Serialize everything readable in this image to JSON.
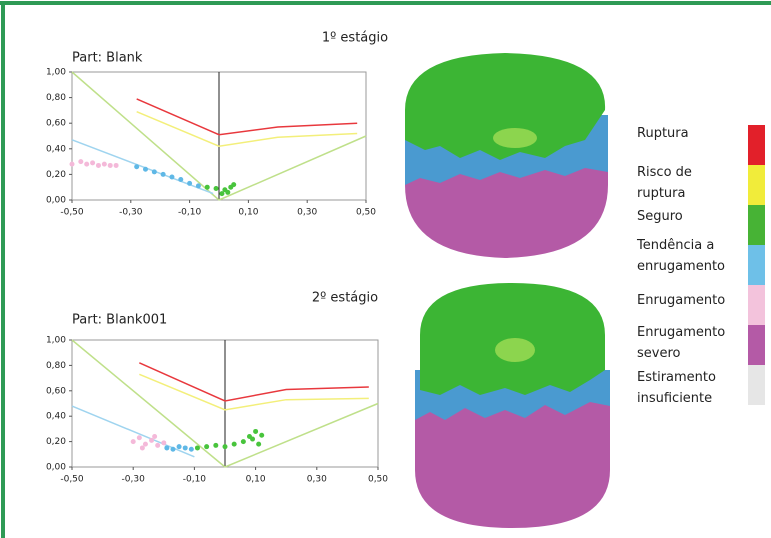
{
  "chart_data": [
    {
      "type": "line",
      "title": "1º estágio",
      "subtitle": "Part: Blank",
      "xlim": [
        -0.5,
        0.5
      ],
      "ylim": [
        0,
        1
      ],
      "xticks": [
        {
          "value": -0.5,
          "label": "-0,50"
        },
        {
          "value": -0.3,
          "label": "-0,30"
        },
        {
          "value": -0.1,
          "label": "-0,10"
        },
        {
          "value": 0.1,
          "label": "0,10"
        },
        {
          "value": 0.3,
          "label": "0,30"
        },
        {
          "value": 0.5,
          "label": "0,50"
        }
      ],
      "yticks": [
        {
          "value": 0,
          "label": "0,00"
        },
        {
          "value": 0.2,
          "label": "0,20"
        },
        {
          "value": 0.4,
          "label": "0,40"
        },
        {
          "value": 0.6,
          "label": "0,60"
        },
        {
          "value": 0.8,
          "label": "0,80"
        },
        {
          "value": 1,
          "label": "1,00"
        }
      ],
      "series": [
        {
          "color": "#e8383d",
          "markers": false,
          "x": [
            -0.28,
            0,
            0.2,
            0.47
          ],
          "values": [
            0.79,
            0.51,
            0.57,
            0.6
          ]
        },
        {
          "color": "#f3ef7a",
          "markers": false,
          "x": [
            -0.28,
            0,
            0.2,
            0.47
          ],
          "values": [
            0.69,
            0.42,
            0.49,
            0.52
          ]
        },
        {
          "color": "#bfe08a",
          "markers": false,
          "x": [
            -0.5,
            0
          ],
          "values": [
            1,
            0
          ]
        },
        {
          "color": "#bfe08a",
          "markers": false,
          "x": [
            0,
            0.5
          ],
          "values": [
            0,
            0.5
          ]
        },
        {
          "color": "#9fd4ef",
          "markers": false,
          "x": [
            -0.5,
            -0.02
          ],
          "values": [
            0.47,
            0.05
          ]
        },
        {
          "color": "#f4b9d9",
          "markers": true,
          "x": [
            -0.5,
            -0.47,
            -0.45,
            -0.43,
            -0.41,
            -0.39,
            -0.37,
            -0.35
          ],
          "values": [
            0.28,
            0.3,
            0.28,
            0.29,
            0.27,
            0.28,
            0.27,
            0.27
          ]
        },
        {
          "color": "#5fb8e6",
          "markers": true,
          "x": [
            -0.28,
            -0.25,
            -0.22,
            -0.19,
            -0.16,
            -0.13,
            -0.1,
            -0.07
          ],
          "values": [
            0.26,
            0.24,
            0.22,
            0.2,
            0.18,
            0.16,
            0.13,
            0.11
          ]
        },
        {
          "color": "#48c43c",
          "markers": true,
          "x": [
            -0.04,
            -0.01,
            0.02,
            0.04,
            0.05,
            0.03,
            0.01
          ],
          "values": [
            0.1,
            0.09,
            0.08,
            0.1,
            0.12,
            0.06,
            0.05
          ]
        }
      ]
    },
    {
      "type": "line",
      "title": "2º estágio",
      "subtitle": "Part: Blank001",
      "xlim": [
        -0.5,
        0.5
      ],
      "ylim": [
        0,
        1
      ],
      "xticks": [
        {
          "value": -0.5,
          "label": "-0,50"
        },
        {
          "value": -0.3,
          "label": "-0,30"
        },
        {
          "value": -0.1,
          "label": "-0,10"
        },
        {
          "value": 0.1,
          "label": "0,10"
        },
        {
          "value": 0.3,
          "label": "0,30"
        },
        {
          "value": 0.5,
          "label": "0,50"
        }
      ],
      "yticks": [
        {
          "value": 0,
          "label": "0,00"
        },
        {
          "value": 0.2,
          "label": "0,20"
        },
        {
          "value": 0.4,
          "label": "0,40"
        },
        {
          "value": 0.6,
          "label": "0,60"
        },
        {
          "value": 0.8,
          "label": "0,80"
        },
        {
          "value": 1,
          "label": "1,00"
        }
      ],
      "series": [
        {
          "color": "#e8383d",
          "markers": false,
          "x": [
            -0.28,
            0,
            0.2,
            0.47
          ],
          "values": [
            0.82,
            0.52,
            0.61,
            0.63
          ]
        },
        {
          "color": "#f3ef7a",
          "markers": false,
          "x": [
            -0.28,
            0,
            0.2,
            0.47
          ],
          "values": [
            0.73,
            0.45,
            0.53,
            0.54
          ]
        },
        {
          "color": "#bfe08a",
          "markers": false,
          "x": [
            -0.5,
            0
          ],
          "values": [
            1,
            0
          ]
        },
        {
          "color": "#bfe08a",
          "markers": false,
          "x": [
            0,
            0.5
          ],
          "values": [
            0,
            0.5
          ]
        },
        {
          "color": "#9fd4ef",
          "markers": false,
          "x": [
            -0.5,
            -0.1
          ],
          "values": [
            0.48,
            0.08
          ]
        },
        {
          "color": "#f4b9d9",
          "markers": true,
          "x": [
            -0.3,
            -0.28,
            -0.26,
            -0.24,
            -0.22,
            -0.2,
            -0.27,
            -0.23
          ],
          "values": [
            0.2,
            0.23,
            0.18,
            0.21,
            0.17,
            0.19,
            0.15,
            0.24
          ]
        },
        {
          "color": "#5fb8e6",
          "markers": true,
          "x": [
            -0.19,
            -0.17,
            -0.15,
            -0.13,
            -0.11
          ],
          "values": [
            0.15,
            0.14,
            0.16,
            0.15,
            0.14
          ]
        },
        {
          "color": "#48c43c",
          "markers": true,
          "x": [
            -0.09,
            -0.06,
            -0.03,
            0,
            0.03,
            0.06,
            0.08,
            0.1,
            0.12,
            0.11,
            0.09
          ],
          "values": [
            0.15,
            0.16,
            0.17,
            0.16,
            0.18,
            0.2,
            0.24,
            0.28,
            0.25,
            0.18,
            0.22
          ]
        }
      ]
    }
  ],
  "legend": {
    "items": [
      {
        "label": "Ruptura",
        "color": "#e2202a"
      },
      {
        "label": "Risco de\nruptura",
        "color": "#f1ec3a"
      },
      {
        "label": "Seguro",
        "color": "#47b335"
      },
      {
        "label": "Tendência a\nenrugamento",
        "color": "#6ec0e8"
      },
      {
        "label": "Enrugamento",
        "color": "#f3c3dc"
      },
      {
        "label": "Enrugamento\nsevero",
        "color": "#b45aa6"
      },
      {
        "label": "Estiramento\ninsuficiente",
        "color": "#e6e6e6"
      }
    ]
  }
}
